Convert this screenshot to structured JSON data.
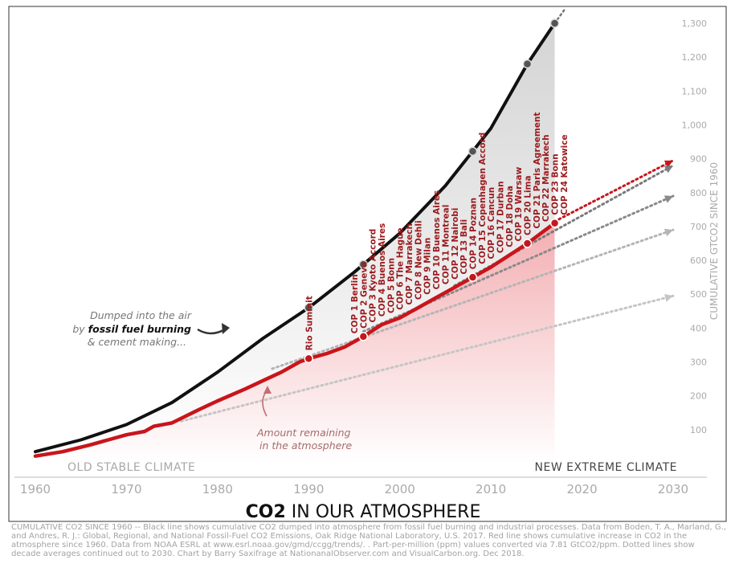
{
  "chart_data": {
    "type": "line",
    "title_bold": "CO2",
    "title_rest": " IN OUR ATMOSPHERE",
    "ylabel": "CUMULATIVE GTCO2 SINCE 1960",
    "xlim": [
      1960,
      2030
    ],
    "ylim": [
      0,
      1350
    ],
    "x_ticks": [
      "1960",
      "1970",
      "1980",
      "1990",
      "2000",
      "2010",
      "2020",
      "2030"
    ],
    "y_ticks": [
      "100",
      "200",
      "300",
      "400",
      "500",
      "600",
      "700",
      "800",
      "900",
      "1,000",
      "1,100",
      "1,200",
      "1,300"
    ],
    "grid": false,
    "series": [
      {
        "key": "fossil",
        "color": "#111111",
        "x": [
          1960,
          1965,
          1970,
          1975,
          1980,
          1985,
          1990,
          1995,
          2000,
          2005,
          2010,
          2014,
          2017
        ],
        "y": [
          35,
          70,
          115,
          180,
          270,
          370,
          460,
          565,
          680,
          820,
          990,
          1180,
          1300
        ]
      },
      {
        "key": "atmosphere",
        "color": "#c8151b",
        "x": [
          1960,
          1963,
          1966,
          1968,
          1970,
          1972,
          1973,
          1975,
          1978,
          1980,
          1983,
          1985,
          1987,
          1989,
          1990,
          1992,
          1994,
          1996,
          1998,
          2000,
          2002,
          2004,
          2006,
          2008,
          2010,
          2012,
          2014,
          2016,
          2017
        ],
        "y": [
          22,
          35,
          55,
          70,
          85,
          95,
          110,
          120,
          160,
          185,
          220,
          245,
          270,
          300,
          310,
          325,
          345,
          375,
          410,
          430,
          460,
          490,
          520,
          550,
          580,
          615,
          650,
          690,
          710
        ]
      }
    ],
    "markers_black": [
      1990,
      1996,
      2008,
      2014,
      2017
    ],
    "markers_red": [
      1990,
      1996,
      2008,
      2014,
      2017
    ],
    "projections": [
      {
        "x": [
          2017,
          2030
        ],
        "y": [
          715,
          895
        ],
        "color": "#c8151b"
      },
      {
        "x": [
          2006,
          2030
        ],
        "y": [
          525,
          880
        ],
        "color": "#7a7a7a"
      },
      {
        "x": [
          1996,
          2030
        ],
        "y": [
          390,
          790
        ],
        "color": "#8a8a8a"
      },
      {
        "x": [
          1986,
          2030
        ],
        "y": [
          280,
          690
        ],
        "color": "#b5b5b5"
      },
      {
        "x": [
          1976,
          2030
        ],
        "y": [
          125,
          495
        ],
        "color": "#c5c5c5"
      }
    ],
    "cop_labels": [
      {
        "year": 1990,
        "name": "Rio Summit"
      },
      {
        "year": 1995,
        "name": "COP 1 Berlin"
      },
      {
        "year": 1996,
        "name": "COP 2 Geneva"
      },
      {
        "year": 1997,
        "name": "COP 3 Kyoto Accord"
      },
      {
        "year": 1998,
        "name": "COP 4 Buenos Aires"
      },
      {
        "year": 1999,
        "name": "COP 5 Bonn"
      },
      {
        "year": 2000,
        "name": "COP 6 The Hague"
      },
      {
        "year": 2001,
        "name": "COP 7 Marrakech"
      },
      {
        "year": 2002,
        "name": "COP 8 New Dehli"
      },
      {
        "year": 2003,
        "name": "COP 9 Milan"
      },
      {
        "year": 2004,
        "name": "COP 10 Buenos Aires"
      },
      {
        "year": 2005,
        "name": "COP 11 Montreal"
      },
      {
        "year": 2006,
        "name": "COP 12 Nairobi"
      },
      {
        "year": 2007,
        "name": "COP 13 Bali"
      },
      {
        "year": 2008,
        "name": "COP 14 Poznan"
      },
      {
        "year": 2009,
        "name": "COP 15 Copenhagen Accord"
      },
      {
        "year": 2010,
        "name": "COP 16 Cancun"
      },
      {
        "year": 2011,
        "name": "COP 17 Durban"
      },
      {
        "year": 2012,
        "name": "COP 18 Doha"
      },
      {
        "year": 2013,
        "name": "COP 19 Warsaw"
      },
      {
        "year": 2014,
        "name": "COP 20 Lima"
      },
      {
        "year": 2015,
        "name": "COP 21 Paris Agreement"
      },
      {
        "year": 2016,
        "name": "COP 22 Marrakech"
      },
      {
        "year": 2017,
        "name": "COP 23 Bonn"
      },
      {
        "year": 2018,
        "name": "COP 24 Katowice"
      }
    ]
  },
  "annotations": {
    "fossil_line1": "Dumped into the air",
    "fossil_line2_pre": "by ",
    "fossil_line2_bold": "fossil fuel burning",
    "fossil_line3": "& cement making...",
    "remaining_line1": "Amount remaining",
    "remaining_line2": "in the atmosphere",
    "old_climate": "OLD STABLE CLIMATE",
    "new_climate": "NEW EXTREME CLIMATE"
  },
  "caption": "CUMULATIVE CO2 SINCE 1960 -- Black line shows cumulative CO2 dumped into atmosphere from fossil fuel burning and industrial processes. Data from Boden, T. A., Marland, G., and Andres, R. J.: Global, Regional, and National Fossil-Fuel CO2 Emissions, Oak Ridge National Laboratory, U.S. 2017. Red line shows cumulative increase in CO2 in the atmosphere since 1960. Data from NOAA ESRL at www.esrl.noaa.gov/gmd/ccgg/trends/. . Part-per-million (ppm) values converted via 7.81 GtCO2/ppm. Dotted lines show decade averages continued out to 2030. Chart by Barry Saxifrage at NationanalObserver.com and VisualCarbon.org. Dec 2018.",
  "colors": {
    "fossil": "#111111",
    "atmosphere": "#c8151b",
    "axis_text": "#aaaaaa",
    "frame": "#333333"
  }
}
